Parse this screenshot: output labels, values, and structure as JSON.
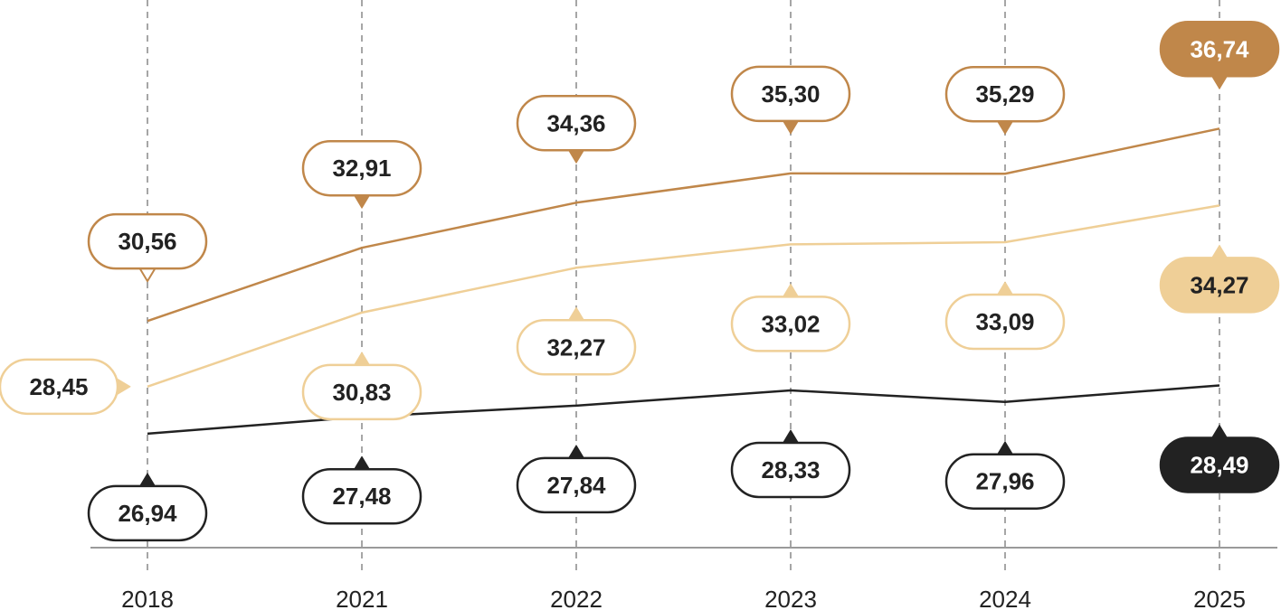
{
  "chart_data": {
    "type": "line",
    "title": "",
    "xlabel": "",
    "ylabel": "",
    "categories": [
      "2018",
      "2021",
      "2022",
      "2023",
      "2024",
      "2025"
    ],
    "ylim": [
      22,
      40
    ],
    "grid": "vertical dashed",
    "legend": "none",
    "series": [
      {
        "values": [
          30.56,
          32.91,
          34.36,
          35.3,
          35.29,
          36.74
        ],
        "labels": [
          "30,56",
          "32,91",
          "34,36",
          "35,30",
          "35,29",
          "36,74"
        ],
        "color": "#c0874a",
        "label_position": "above"
      },
      {
        "values": [
          28.45,
          30.83,
          32.27,
          33.02,
          33.09,
          34.27
        ],
        "labels": [
          "28,45",
          "30,83",
          "32,27",
          "33,02",
          "33,09",
          "34,27"
        ],
        "color": "#efcf97",
        "label_position": "below",
        "first_label_position": "left"
      },
      {
        "values": [
          26.94,
          27.48,
          27.84,
          28.33,
          27.96,
          28.49
        ],
        "labels": [
          "26,94",
          "27,48",
          "27,84",
          "28,33",
          "27,96",
          "28,49"
        ],
        "color": "#222222",
        "label_position": "below"
      }
    ]
  }
}
